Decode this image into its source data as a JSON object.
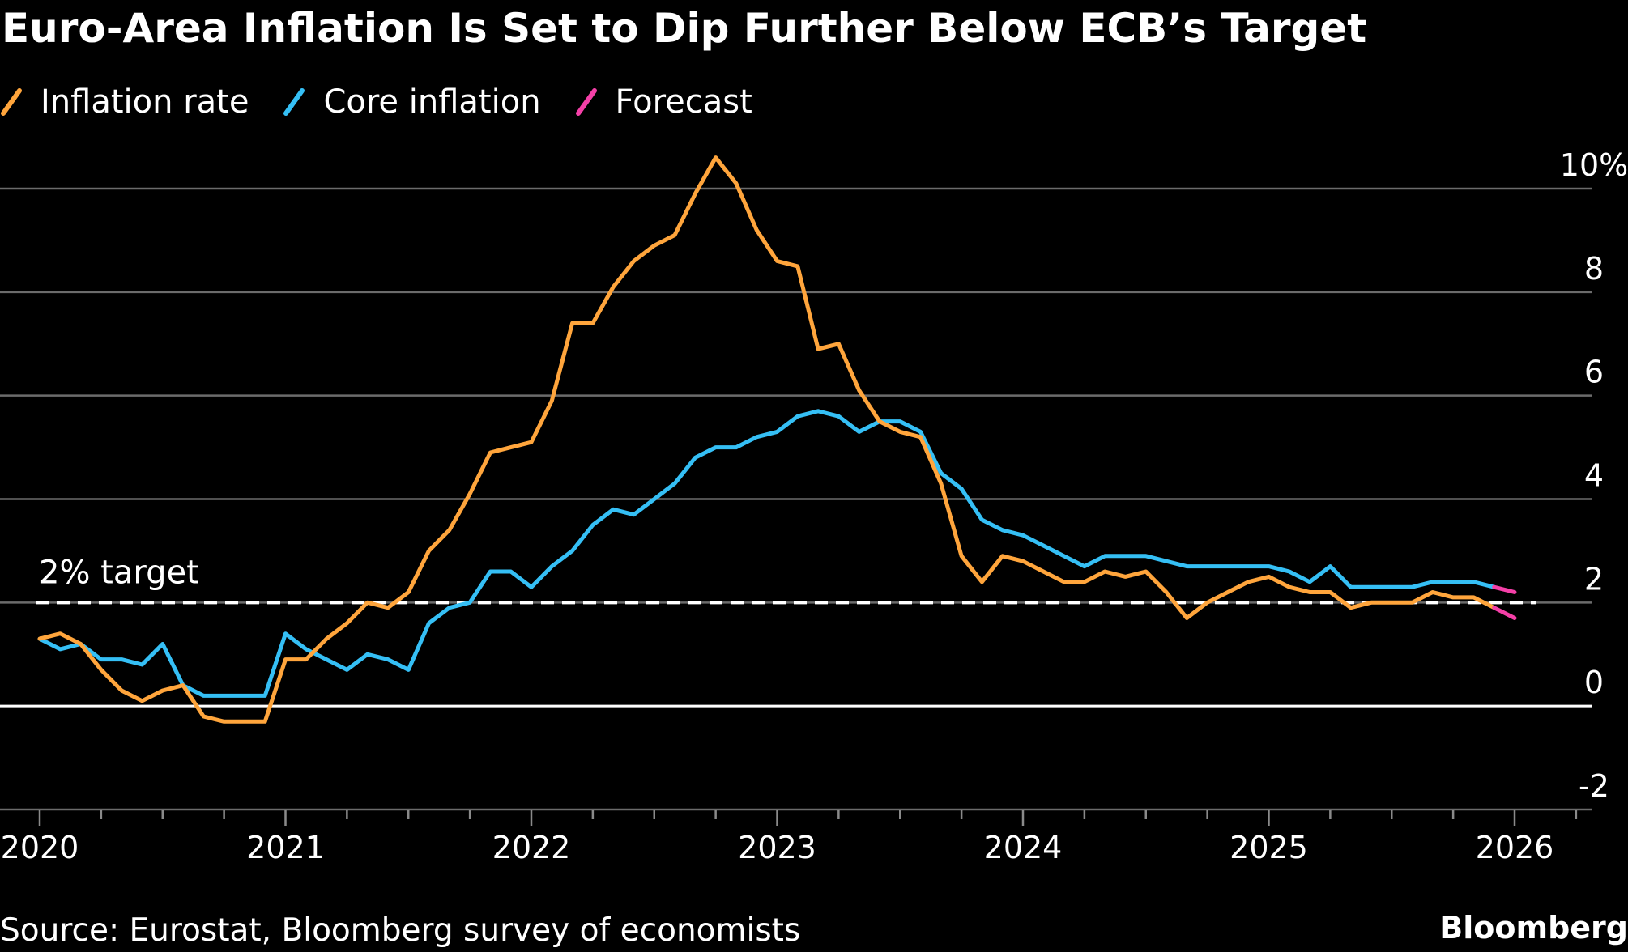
{
  "title": "Euro-Area Inflation Is Set to Dip Further Below ECB’s Target",
  "legend": [
    {
      "label": "Inflation rate",
      "color": "#FFA53C"
    },
    {
      "label": "Core inflation",
      "color": "#35BFF5"
    },
    {
      "label": "Forecast",
      "color": "#F540A8"
    }
  ],
  "source": "Source: Eurostat, Bloomberg survey of economists",
  "brand": "Bloomberg",
  "target_label": "2% target",
  "chart_data": {
    "type": "line",
    "ylim": [
      -2,
      10
    ],
    "y_ticks": [
      {
        "value": 10,
        "label": "10%"
      },
      {
        "value": 8,
        "label": "8"
      },
      {
        "value": 6,
        "label": "6"
      },
      {
        "value": 4,
        "label": "4"
      },
      {
        "value": 2,
        "label": "2"
      },
      {
        "value": 0,
        "label": "0"
      },
      {
        "value": -2,
        "label": "-2"
      }
    ],
    "x_ticks": [
      "2020",
      "2021",
      "2022",
      "2023",
      "2024",
      "2025",
      "2026"
    ],
    "reference_line": {
      "value": 2,
      "label": "2% target",
      "style": "dashed"
    },
    "grid": true,
    "legend_position": "top-left",
    "series": [
      {
        "name": "Inflation rate",
        "color": "#FFA53C",
        "start": "2020-01",
        "values": [
          1.3,
          1.4,
          1.2,
          0.7,
          0.3,
          0.1,
          0.3,
          0.4,
          -0.2,
          -0.3,
          -0.3,
          -0.3,
          0.9,
          0.9,
          1.3,
          1.6,
          2.0,
          1.9,
          2.2,
          3.0,
          3.4,
          4.1,
          4.9,
          5.0,
          5.1,
          5.9,
          7.4,
          7.4,
          8.1,
          8.6,
          8.9,
          9.1,
          9.9,
          10.6,
          10.1,
          9.2,
          8.6,
          8.5,
          6.9,
          7.0,
          6.1,
          5.5,
          5.3,
          5.2,
          4.3,
          2.9,
          2.4,
          2.9,
          2.8,
          2.6,
          2.4,
          2.4,
          2.6,
          2.5,
          2.6,
          2.2,
          1.7,
          2.0,
          2.2,
          2.4,
          2.5,
          2.3,
          2.2,
          2.2,
          1.9,
          2.0,
          2.0,
          2.0,
          2.2,
          2.1,
          2.1,
          1.9
        ]
      },
      {
        "name": "Core inflation",
        "color": "#35BFF5",
        "start": "2020-01",
        "values": [
          1.3,
          1.1,
          1.2,
          0.9,
          0.9,
          0.8,
          1.2,
          0.4,
          0.2,
          0.2,
          0.2,
          0.2,
          1.4,
          1.1,
          0.9,
          0.7,
          1.0,
          0.9,
          0.7,
          1.6,
          1.9,
          2.0,
          2.6,
          2.6,
          2.3,
          2.7,
          3.0,
          3.5,
          3.8,
          3.7,
          4.0,
          4.3,
          4.8,
          5.0,
          5.0,
          5.2,
          5.3,
          5.6,
          5.7,
          5.6,
          5.3,
          5.5,
          5.5,
          5.3,
          4.5,
          4.2,
          3.6,
          3.4,
          3.3,
          3.1,
          2.9,
          2.7,
          2.9,
          2.9,
          2.9,
          2.8,
          2.7,
          2.7,
          2.7,
          2.7,
          2.7,
          2.6,
          2.4,
          2.7,
          2.3,
          2.3,
          2.3,
          2.3,
          2.4,
          2.4,
          2.4,
          2.3
        ]
      }
    ],
    "forecast": [
      {
        "series": "Inflation rate",
        "x": [
          "2025-12",
          "2026-01"
        ],
        "values": [
          1.9,
          1.7
        ]
      },
      {
        "series": "Core inflation",
        "x": [
          "2025-12",
          "2026-01"
        ],
        "values": [
          2.3,
          2.2
        ]
      }
    ]
  }
}
